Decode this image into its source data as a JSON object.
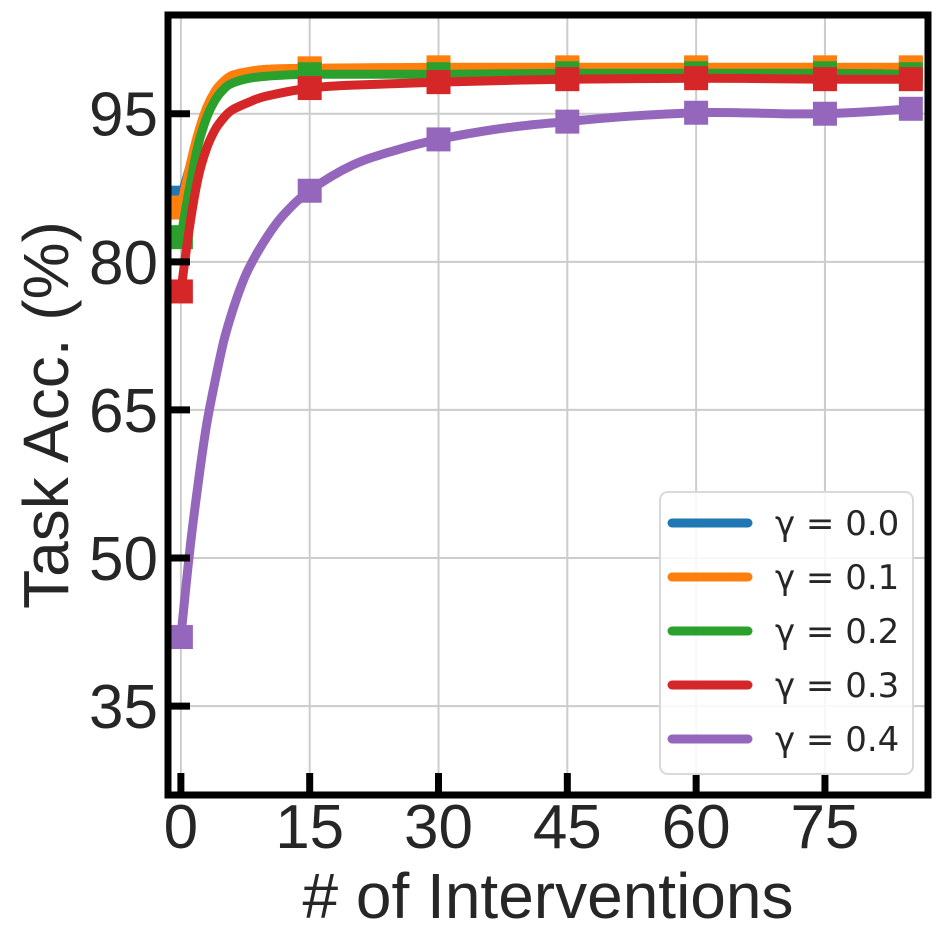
{
  "chart_data": {
    "type": "line",
    "title": "",
    "xlabel": "# of Interventions",
    "ylabel": "Task Acc. (%)",
    "xlim": [
      -1.5,
      87
    ],
    "ylim": [
      26,
      105
    ],
    "xticks": [
      0,
      15,
      30,
      45,
      60,
      75
    ],
    "xtick_labels": [
      "0",
      "15",
      "30",
      "45",
      "60",
      "75"
    ],
    "yticks": [
      35,
      50,
      65,
      80,
      95
    ],
    "ytick_labels": [
      "35",
      "50",
      "65",
      "80",
      "95"
    ],
    "grid": true,
    "legend_position": "lower-right",
    "marker_x": [
      0,
      15,
      30,
      45,
      60,
      75,
      85
    ],
    "series": [
      {
        "name": "γ = 0.0",
        "legend_label": "γ = 0.0",
        "color": "#1f77b4",
        "curve_x": [
          0,
          1,
          2,
          3,
          4,
          5,
          6,
          8,
          10,
          15,
          30,
          45,
          60,
          75,
          85
        ],
        "curve_y": [
          86.5,
          89.5,
          92.5,
          95.0,
          96.8,
          97.9,
          98.6,
          99.1,
          99.3,
          99.4,
          99.5,
          99.5,
          99.5,
          99.5,
          99.5
        ],
        "marker_y": [
          86.5,
          99.4,
          99.5,
          99.5,
          99.5,
          99.5,
          99.5
        ]
      },
      {
        "name": "γ = 0.1",
        "legend_label": "γ = 0.1",
        "color": "#ff7f0e",
        "curve_x": [
          0,
          1,
          2,
          3,
          4,
          5,
          6,
          8,
          10,
          15,
          30,
          45,
          60,
          75,
          85
        ],
        "curve_y": [
          85.5,
          89.5,
          93.0,
          95.6,
          97.3,
          98.3,
          98.9,
          99.3,
          99.5,
          99.6,
          99.7,
          99.7,
          99.7,
          99.7,
          99.7
        ],
        "marker_y": [
          85.5,
          99.6,
          99.7,
          99.7,
          99.7,
          99.7,
          99.7
        ]
      },
      {
        "name": "γ = 0.2",
        "legend_label": "γ = 0.2",
        "color": "#2ca02c",
        "curve_x": [
          0,
          1,
          2,
          3,
          4,
          5,
          6,
          8,
          10,
          15,
          30,
          45,
          60,
          75,
          85
        ],
        "curve_y": [
          82.5,
          87.5,
          91.8,
          94.6,
          96.4,
          97.5,
          98.1,
          98.6,
          98.8,
          99.0,
          99.0,
          99.1,
          99.1,
          99.1,
          99.0
        ],
        "marker_y": [
          82.5,
          99.0,
          99.0,
          99.1,
          99.1,
          99.1,
          99.0
        ]
      },
      {
        "name": "γ = 0.3",
        "legend_label": "γ = 0.3",
        "color": "#d62728",
        "curve_x": [
          0,
          1,
          2,
          3,
          4,
          5,
          6,
          8,
          10,
          15,
          20,
          30,
          45,
          60,
          75,
          85
        ],
        "curve_y": [
          77.0,
          83.5,
          88.5,
          91.5,
          93.4,
          94.6,
          95.4,
          96.2,
          96.8,
          97.6,
          97.9,
          98.2,
          98.5,
          98.6,
          98.5,
          98.5
        ],
        "marker_y": [
          77.0,
          97.6,
          98.2,
          98.5,
          98.6,
          98.5,
          98.5
        ]
      },
      {
        "name": "γ = 0.4",
        "legend_label": "γ = 0.4",
        "color": "#9467bd",
        "curve_x": [
          0,
          1,
          2,
          3,
          4,
          5,
          6,
          7,
          8,
          10,
          12,
          15,
          20,
          25,
          30,
          35,
          40,
          45,
          50,
          55,
          60,
          65,
          70,
          75,
          80,
          85
        ],
        "curve_y": [
          42.0,
          50.5,
          57.5,
          63.5,
          68.0,
          72.0,
          75.0,
          77.5,
          79.5,
          82.5,
          84.8,
          87.2,
          89.8,
          91.3,
          92.4,
          93.2,
          93.8,
          94.2,
          94.6,
          94.9,
          95.1,
          95.1,
          95.0,
          95.0,
          95.2,
          95.5
        ],
        "marker_y": [
          42.0,
          87.2,
          92.4,
          94.2,
          95.1,
          95.0,
          95.5
        ]
      }
    ]
  }
}
